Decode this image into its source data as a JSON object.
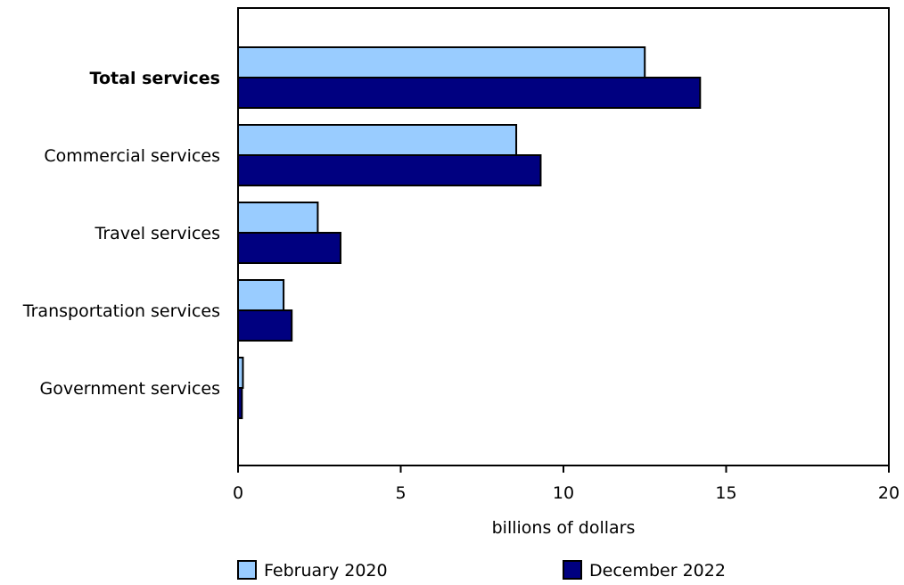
{
  "chart_data": {
    "type": "bar",
    "orientation": "horizontal",
    "categories": [
      "Total services",
      "Commercial services",
      "Travel services",
      "Transportation services",
      "Government services"
    ],
    "emphasized_category": "Total services",
    "series": [
      {
        "name": "February 2020",
        "values": [
          12.5,
          8.55,
          2.45,
          1.4,
          0.15
        ],
        "color": "#99ccff"
      },
      {
        "name": "December 2022",
        "values": [
          14.2,
          9.3,
          3.15,
          1.65,
          0.12
        ],
        "color": "#000080"
      }
    ],
    "xlabel": "billions of dollars",
    "xlim": [
      0,
      20
    ],
    "xticks": [
      "0",
      "5",
      "10",
      "15",
      "20"
    ],
    "grid": false,
    "legend_position": "bottom"
  }
}
